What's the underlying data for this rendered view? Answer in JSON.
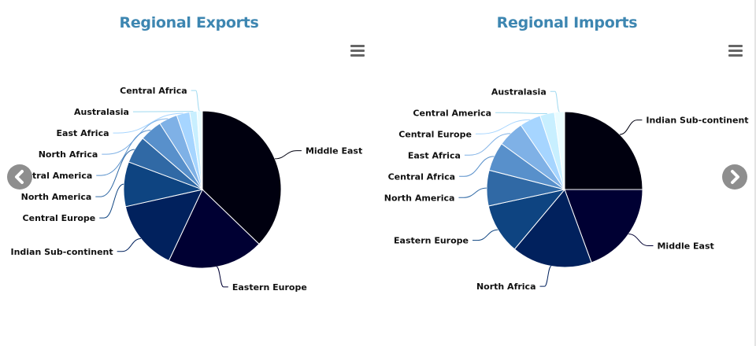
{
  "carousel": {
    "prev_icon": "chevron-left-icon",
    "next_icon": "chevron-right-icon"
  },
  "menu_icon": "hamburger-menu-icon",
  "chart_data": [
    {
      "type": "pie",
      "title": "Regional Exports",
      "slices": [
        {
          "label": "Middle East",
          "value": 37.2,
          "color": "#00000f"
        },
        {
          "label": "Eastern Europe",
          "value": 19.8,
          "color": "#000033"
        },
        {
          "label": "Indian Sub-continent",
          "value": 14.5,
          "color": "#01215d"
        },
        {
          "label": "Central Europe",
          "value": 9.2,
          "color": "#0e4481"
        },
        {
          "label": "North America",
          "value": 5.6,
          "color": "#3069a5"
        },
        {
          "label": "Central America",
          "value": 4.6,
          "color": "#5890cb"
        },
        {
          "label": "North Africa",
          "value": 3.8,
          "color": "#7fb1e6"
        },
        {
          "label": "East Africa",
          "value": 2.7,
          "color": "#a6d5ff"
        },
        {
          "label": "Australasia",
          "value": 1.5,
          "color": "#c8efff"
        },
        {
          "label": "Central Africa",
          "value": 1.1,
          "color": "#eafcff"
        }
      ]
    },
    {
      "type": "pie",
      "title": "Regional Imports",
      "slices": [
        {
          "label": "Indian Sub-continent",
          "value": 25.0,
          "color": "#00000f"
        },
        {
          "label": "Middle East",
          "value": 19.4,
          "color": "#000033"
        },
        {
          "label": "North Africa",
          "value": 16.7,
          "color": "#01215d"
        },
        {
          "label": "Eastern Europe",
          "value": 10.5,
          "color": "#0e4481"
        },
        {
          "label": "North America",
          "value": 7.4,
          "color": "#3069a5"
        },
        {
          "label": "Central Africa",
          "value": 6.0,
          "color": "#5890cb"
        },
        {
          "label": "East Africa",
          "value": 5.5,
          "color": "#7fb1e6"
        },
        {
          "label": "Central Europe",
          "value": 4.4,
          "color": "#a6d5ff"
        },
        {
          "label": "Central America",
          "value": 3.0,
          "color": "#c8efff"
        },
        {
          "label": "Australasia",
          "value": 2.1,
          "color": "#eafcff"
        }
      ]
    }
  ]
}
